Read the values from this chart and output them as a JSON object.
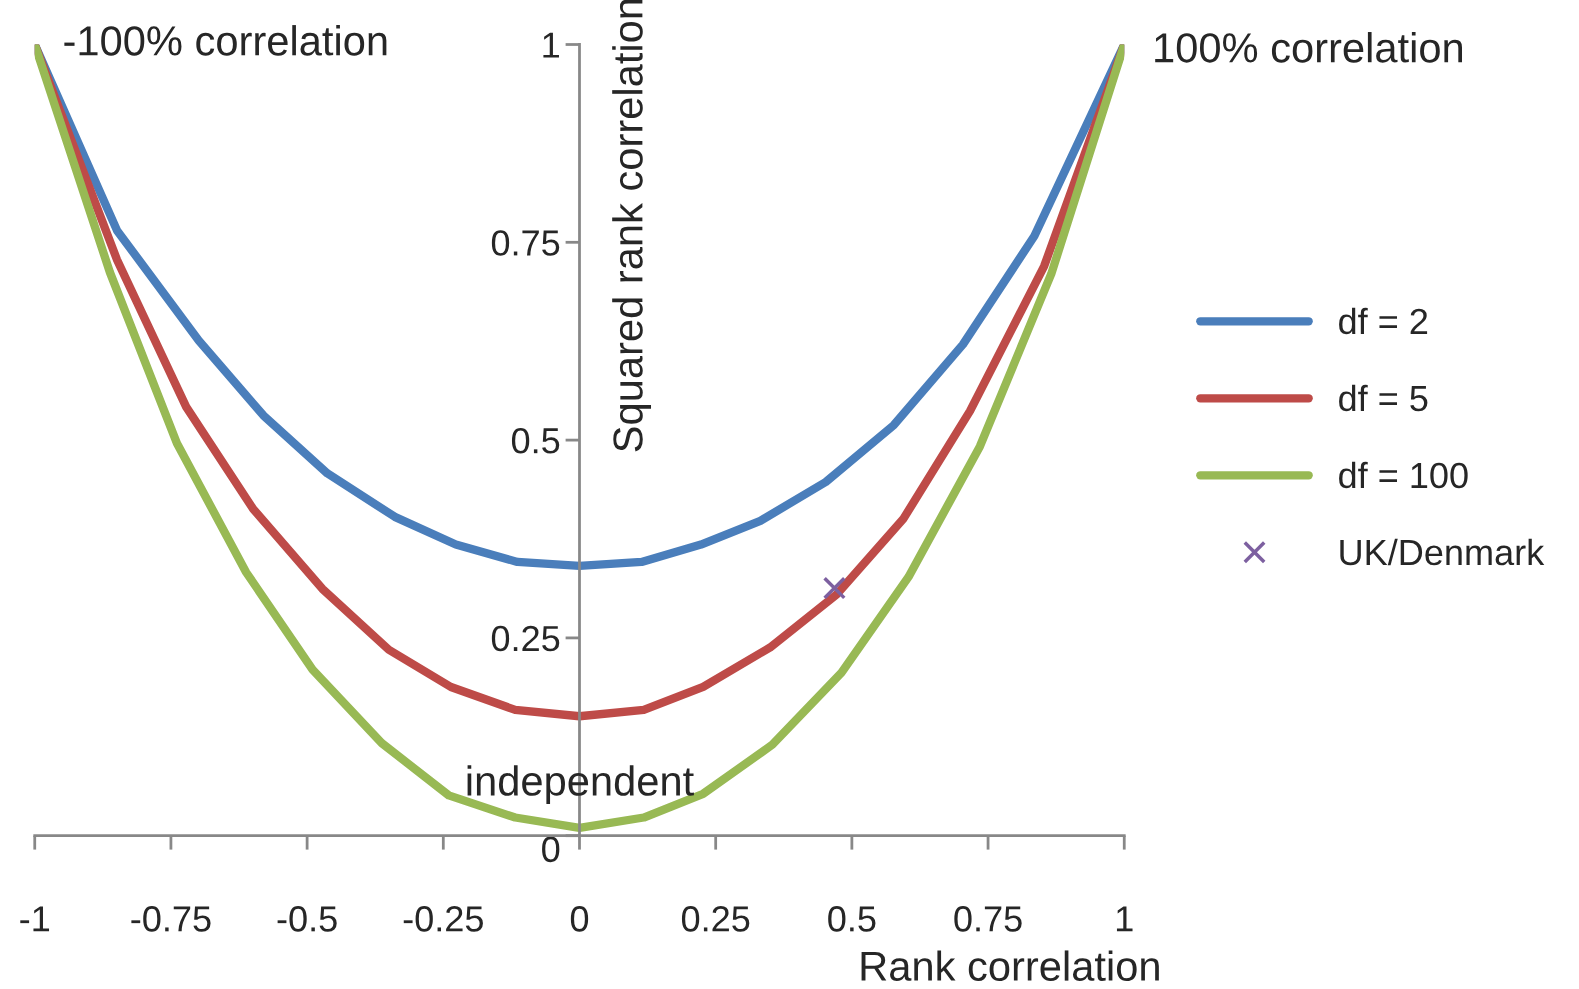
{
  "chart_data": {
    "type": "line",
    "xlabel": "Rank correlation",
    "ylabel": "Squared rank correlation",
    "xlim": [
      -1,
      1
    ],
    "ylim": [
      0,
      1
    ],
    "xticks": [
      -1,
      -0.75,
      -0.5,
      -0.25,
      0,
      0.25,
      0.5,
      0.75,
      1
    ],
    "yticks": [
      0,
      0.25,
      0.5,
      0.75,
      1
    ],
    "grid": false,
    "legend": "right",
    "annotations": [
      {
        "text": "-100% correlation",
        "x": -1,
        "y": 1
      },
      {
        "text": "100% correlation",
        "x": 1,
        "y": 1
      },
      "independent"
    ],
    "series": [
      {
        "name": "df = 2",
        "color": "#4a7ebb",
        "x": [
          -1,
          -0.849,
          -0.699,
          -0.58,
          -0.463,
          -0.339,
          -0.227,
          -0.114,
          0,
          0.114,
          0.223,
          0.332,
          0.452,
          0.577,
          0.704,
          0.835,
          1
        ],
        "values": [
          1,
          0.765,
          0.626,
          0.531,
          0.458,
          0.403,
          0.368,
          0.346,
          0.341,
          0.346,
          0.368,
          0.398,
          0.447,
          0.519,
          0.621,
          0.758,
          1
        ]
      },
      {
        "name": "df = 5",
        "color": "#be4b48",
        "x": [
          -1,
          -0.849,
          -0.722,
          -0.599,
          -0.472,
          -0.35,
          -0.236,
          -0.118,
          0,
          0.118,
          0.227,
          0.35,
          0.472,
          0.595,
          0.717,
          0.853,
          1
        ],
        "values": [
          1,
          0.728,
          0.542,
          0.413,
          0.312,
          0.235,
          0.188,
          0.159,
          0.151,
          0.159,
          0.188,
          0.238,
          0.305,
          0.401,
          0.537,
          0.72,
          1
        ]
      },
      {
        "name": "df = 100",
        "color": "#98b954",
        "x": [
          -1,
          -0.862,
          -0.739,
          -0.612,
          -0.49,
          -0.363,
          -0.24,
          -0.118,
          0,
          0.118,
          0.227,
          0.354,
          0.481,
          0.604,
          0.735,
          0.866,
          1
        ],
        "values": [
          1,
          0.712,
          0.496,
          0.333,
          0.21,
          0.117,
          0.051,
          0.023,
          0.01,
          0.023,
          0.053,
          0.115,
          0.206,
          0.327,
          0.492,
          0.71,
          1
        ]
      },
      {
        "name": "UK/Denmark",
        "type": "scatter",
        "marker": "cross",
        "color": "#7d60a0",
        "x": [
          0.468
        ],
        "values": [
          0.313
        ]
      }
    ]
  }
}
